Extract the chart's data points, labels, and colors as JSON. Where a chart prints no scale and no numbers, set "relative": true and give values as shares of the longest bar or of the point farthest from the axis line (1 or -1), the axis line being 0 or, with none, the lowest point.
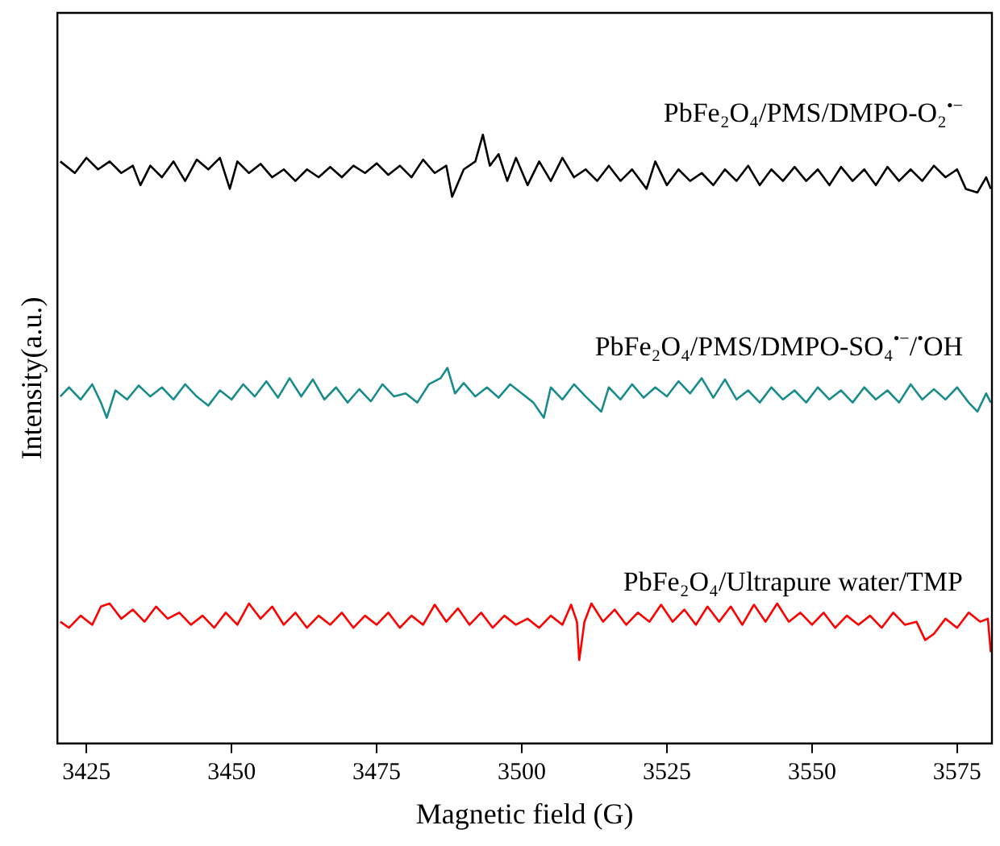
{
  "chart_data": {
    "type": "line",
    "relative": true,
    "xlabel": "Magnetic field (G)",
    "ylabel": "Intensity(a.u.)",
    "xlim": [
      3420,
      3581
    ],
    "xticks": [
      3425,
      3450,
      3475,
      3500,
      3525,
      3550,
      3575
    ],
    "grid": false,
    "legend": false,
    "tick_labels": "x",
    "series": [
      {
        "name": "PbFe₂O₄/PMS/DMPO-O₂$^{•−}$",
        "color": "#000000",
        "x": [
          3420.5,
          3423,
          3425,
          3427,
          3429,
          3431,
          3433,
          3434.3,
          3436,
          3438,
          3440,
          3442,
          3444,
          3446,
          3448,
          3449.7,
          3451,
          3453,
          3455,
          3457,
          3459,
          3461,
          3463,
          3465,
          3467,
          3469,
          3471,
          3473,
          3475,
          3477,
          3479,
          3481,
          3483,
          3485,
          3487,
          3488,
          3490,
          3492,
          3493.3,
          3494.5,
          3496,
          3497.5,
          3499,
          3501,
          3503,
          3505,
          3507,
          3509,
          3511,
          3513,
          3515,
          3517,
          3519,
          3521.5,
          3523,
          3525,
          3527,
          3529,
          3531,
          3533,
          3535,
          3537,
          3539,
          3541,
          3543,
          3545,
          3547,
          3549,
          3551,
          3553,
          3555,
          3557,
          3559,
          3561,
          3563,
          3565,
          3567,
          3569,
          3571,
          3573,
          3575,
          3576.5,
          3578.5,
          3580,
          3580.8
        ],
        "values": [
          0.956,
          0.937,
          0.962,
          0.943,
          0.956,
          0.937,
          0.949,
          0.917,
          0.949,
          0.93,
          0.956,
          0.924,
          0.959,
          0.943,
          0.962,
          0.911,
          0.956,
          0.937,
          0.952,
          0.93,
          0.943,
          0.924,
          0.943,
          0.93,
          0.947,
          0.93,
          0.949,
          0.937,
          0.953,
          0.934,
          0.949,
          0.93,
          0.959,
          0.937,
          0.949,
          0.898,
          0.943,
          0.956,
          1.0,
          0.949,
          0.968,
          0.924,
          0.962,
          0.917,
          0.956,
          0.924,
          0.962,
          0.93,
          0.943,
          0.924,
          0.949,
          0.924,
          0.943,
          0.911,
          0.956,
          0.917,
          0.943,
          0.924,
          0.937,
          0.917,
          0.943,
          0.924,
          0.949,
          0.917,
          0.943,
          0.924,
          0.947,
          0.924,
          0.943,
          0.917,
          0.947,
          0.924,
          0.943,
          0.917,
          0.947,
          0.924,
          0.943,
          0.924,
          0.949,
          0.93,
          0.943,
          0.911,
          0.905,
          0.93,
          0.911
        ]
      },
      {
        "name": "PbFe₂O₄/PMS/DMPO-SO₄$^{•−}$/$^{•}$OH",
        "color": "#1a8c8c",
        "x": [
          3420.5,
          3422,
          3424,
          3426,
          3427.5,
          3428.5,
          3430,
          3432,
          3434,
          3436,
          3438,
          3440,
          3442,
          3444,
          3446,
          3448,
          3450,
          3452,
          3454,
          3456,
          3458,
          3460,
          3462,
          3464,
          3466,
          3468,
          3470,
          3472,
          3474,
          3476,
          3478,
          3480,
          3482,
          3484,
          3486,
          3487.2,
          3488.5,
          3490,
          3492,
          3494,
          3496,
          3498,
          3500,
          3502,
          3503.8,
          3505,
          3507,
          3509,
          3511,
          3513.7,
          3515,
          3517,
          3519,
          3521,
          3523,
          3525,
          3527,
          3529,
          3531,
          3533,
          3535,
          3537,
          3539,
          3541,
          3543,
          3545,
          3547,
          3549,
          3551,
          3553,
          3555,
          3557,
          3559,
          3561,
          3563,
          3565,
          3567,
          3569,
          3571,
          3573,
          3575,
          3577,
          3578.5,
          3580,
          3580.8
        ],
        "values": [
          0.57,
          0.585,
          0.565,
          0.59,
          0.56,
          0.535,
          0.58,
          0.565,
          0.588,
          0.57,
          0.585,
          0.565,
          0.59,
          0.57,
          0.555,
          0.58,
          0.565,
          0.59,
          0.57,
          0.595,
          0.568,
          0.6,
          0.57,
          0.598,
          0.565,
          0.585,
          0.56,
          0.582,
          0.562,
          0.59,
          0.57,
          0.575,
          0.56,
          0.59,
          0.6,
          0.617,
          0.575,
          0.592,
          0.57,
          0.585,
          0.568,
          0.59,
          0.575,
          0.56,
          0.535,
          0.585,
          0.565,
          0.59,
          0.57,
          0.545,
          0.585,
          0.565,
          0.59,
          0.568,
          0.585,
          0.57,
          0.595,
          0.575,
          0.6,
          0.568,
          0.598,
          0.565,
          0.58,
          0.56,
          0.585,
          0.565,
          0.58,
          0.56,
          0.585,
          0.565,
          0.58,
          0.56,
          0.585,
          0.565,
          0.58,
          0.56,
          0.59,
          0.565,
          0.582,
          0.565,
          0.585,
          0.56,
          0.545,
          0.575,
          0.56
        ]
      },
      {
        "name": "PbFe₂O₄/Ultrapure water/TMP",
        "color": "#ff0000",
        "x": [
          3420.5,
          3422,
          3424,
          3426,
          3427.5,
          3429,
          3431,
          3433,
          3435,
          3437,
          3439,
          3441,
          3443,
          3445,
          3447,
          3449,
          3451,
          3453,
          3455,
          3457,
          3459,
          3461,
          3463,
          3465,
          3467,
          3469,
          3471,
          3473,
          3475,
          3477,
          3479,
          3481,
          3483,
          3485,
          3487,
          3489,
          3491,
          3493,
          3495,
          3497,
          3499,
          3501,
          3503,
          3505,
          3507,
          3508.5,
          3509.5,
          3509.9,
          3510.8,
          3512,
          3514,
          3516,
          3518,
          3520,
          3522,
          3524,
          3526,
          3528,
          3530,
          3532,
          3534,
          3536,
          3538,
          3540,
          3542,
          3544,
          3546,
          3548,
          3550,
          3552,
          3554,
          3556,
          3558,
          3560,
          3562,
          3564,
          3566,
          3568,
          3569.5,
          3571,
          3573,
          3575,
          3577,
          3579,
          3580.3,
          3580.8
        ],
        "values": [
          0.2,
          0.19,
          0.21,
          0.195,
          0.225,
          0.23,
          0.205,
          0.22,
          0.2,
          0.225,
          0.205,
          0.215,
          0.195,
          0.21,
          0.19,
          0.215,
          0.195,
          0.23,
          0.205,
          0.225,
          0.195,
          0.215,
          0.19,
          0.21,
          0.195,
          0.215,
          0.19,
          0.21,
          0.195,
          0.215,
          0.19,
          0.21,
          0.195,
          0.228,
          0.2,
          0.222,
          0.195,
          0.215,
          0.19,
          0.21,
          0.195,
          0.205,
          0.19,
          0.21,
          0.195,
          0.228,
          0.2,
          0.137,
          0.2,
          0.23,
          0.2,
          0.22,
          0.195,
          0.215,
          0.2,
          0.228,
          0.2,
          0.22,
          0.195,
          0.225,
          0.2,
          0.225,
          0.195,
          0.228,
          0.2,
          0.23,
          0.2,
          0.215,
          0.195,
          0.215,
          0.19,
          0.21,
          0.195,
          0.21,
          0.19,
          0.215,
          0.195,
          0.2,
          0.17,
          0.18,
          0.205,
          0.19,
          0.215,
          0.2,
          0.205,
          0.15
        ]
      }
    ]
  }
}
